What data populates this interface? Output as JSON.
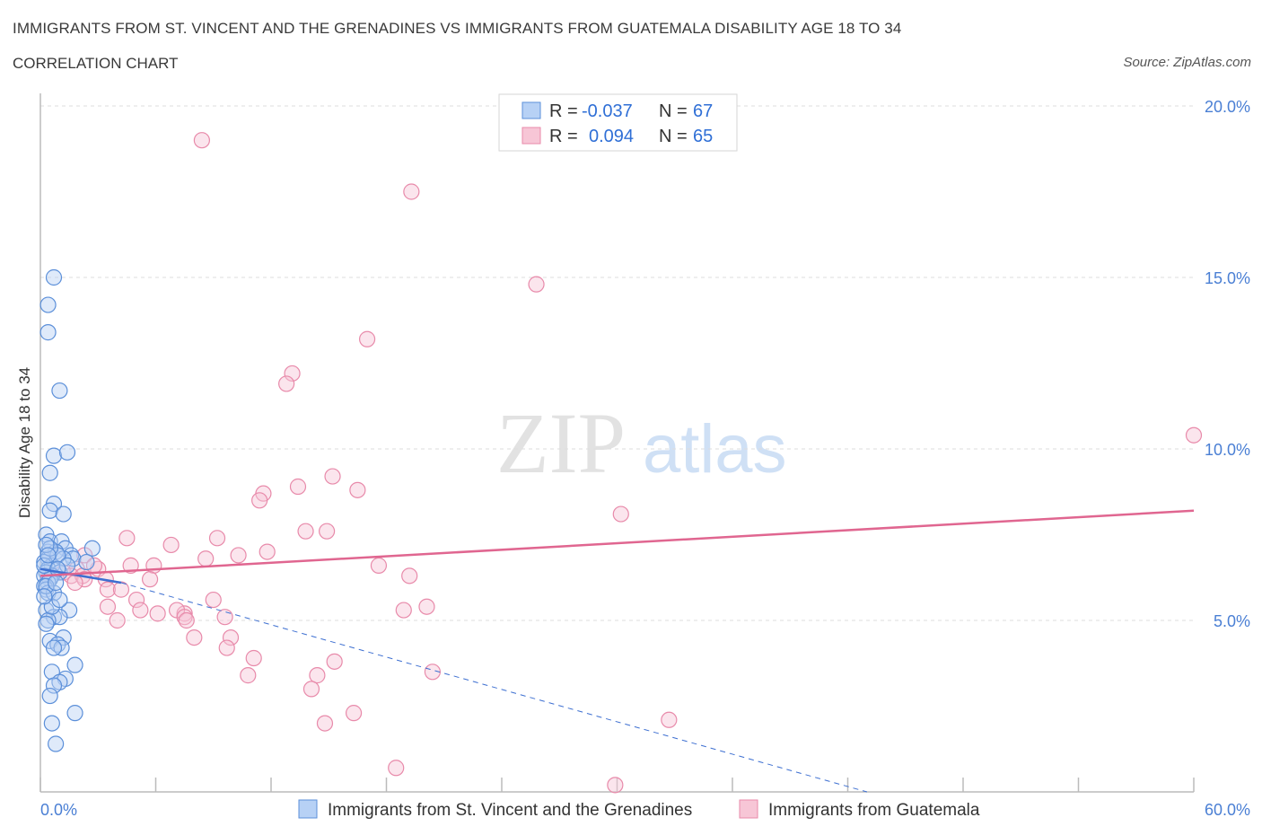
{
  "title": "IMMIGRANTS FROM ST. VINCENT AND THE GRENADINES VS IMMIGRANTS FROM GUATEMALA DISABILITY AGE 18 TO 34",
  "subtitle": "CORRELATION CHART",
  "source": "Source: ZipAtlas.com",
  "watermark": {
    "zip": "ZIP",
    "atlas": "atlas"
  },
  "colors": {
    "blue_fill": "#b7d1f5",
    "blue_stroke": "#5b8fd9",
    "blue_line": "#3d6fd1",
    "pink_fill": "#f7c6d6",
    "pink_stroke": "#e88aaa",
    "pink_line": "#e06690",
    "tick_text": "#4a7fd4",
    "grid": "#dddddd"
  },
  "legend": {
    "series1": {
      "r_label": "R =",
      "r_value": "-0.037",
      "n_label": "N =",
      "n_value": "67"
    },
    "series2": {
      "r_label": "R =",
      "r_value": "0.094",
      "n_label": "N =",
      "n_value": "65"
    }
  },
  "chart_data": {
    "type": "scatter",
    "title": "IMMIGRANTS FROM ST. VINCENT AND THE GRENADINES VS IMMIGRANTS FROM GUATEMALA DISABILITY AGE 18 TO 34",
    "xlabel": "",
    "ylabel": "Disability Age 18 to 34",
    "xlim": [
      0,
      60
    ],
    "ylim": [
      0,
      20
    ],
    "x_tick_labels": [
      "0.0%",
      "60.0%"
    ],
    "y_ticks": [
      5,
      10,
      15,
      20
    ],
    "y_tick_labels": [
      "5.0%",
      "10.0%",
      "15.0%",
      "20.0%"
    ],
    "x_minor_ticks": [
      0,
      6,
      12,
      18,
      24,
      30,
      36,
      42,
      48,
      54,
      60
    ],
    "grid": true,
    "series": [
      {
        "name": "Immigrants from St. Vincent and the Grenadines",
        "color": "blue",
        "points": [
          [
            0.7,
            15.0
          ],
          [
            0.4,
            14.2
          ],
          [
            0.4,
            13.4
          ],
          [
            1.0,
            11.7
          ],
          [
            0.7,
            9.8
          ],
          [
            1.4,
            9.9
          ],
          [
            0.5,
            9.3
          ],
          [
            0.7,
            8.4
          ],
          [
            0.5,
            8.2
          ],
          [
            1.2,
            8.1
          ],
          [
            0.3,
            7.5
          ],
          [
            0.5,
            7.3
          ],
          [
            1.1,
            7.3
          ],
          [
            1.3,
            7.1
          ],
          [
            2.7,
            7.1
          ],
          [
            0.4,
            7.0
          ],
          [
            0.8,
            7.0
          ],
          [
            1.6,
            6.9
          ],
          [
            1.7,
            6.8
          ],
          [
            0.4,
            6.8
          ],
          [
            1.2,
            6.8
          ],
          [
            2.4,
            6.7
          ],
          [
            0.2,
            6.7
          ],
          [
            0.6,
            6.6
          ],
          [
            0.4,
            6.5
          ],
          [
            1.0,
            6.4
          ],
          [
            0.3,
            6.4
          ],
          [
            0.6,
            6.3
          ],
          [
            0.2,
            6.3
          ],
          [
            0.5,
            6.2
          ],
          [
            0.4,
            6.1
          ],
          [
            0.2,
            6.0
          ],
          [
            0.3,
            5.9
          ],
          [
            0.4,
            5.8
          ],
          [
            0.7,
            5.8
          ],
          [
            1.5,
            5.3
          ],
          [
            0.3,
            5.3
          ],
          [
            0.7,
            5.1
          ],
          [
            1.0,
            5.1
          ],
          [
            0.4,
            5.0
          ],
          [
            0.3,
            4.9
          ],
          [
            1.2,
            4.5
          ],
          [
            0.5,
            4.4
          ],
          [
            0.9,
            4.3
          ],
          [
            1.1,
            4.2
          ],
          [
            0.7,
            4.2
          ],
          [
            1.8,
            3.7
          ],
          [
            0.6,
            3.5
          ],
          [
            1.3,
            3.3
          ],
          [
            1.0,
            3.2
          ],
          [
            0.7,
            3.1
          ],
          [
            0.5,
            2.8
          ],
          [
            1.8,
            2.3
          ],
          [
            0.6,
            2.0
          ],
          [
            0.8,
            1.4
          ],
          [
            0.2,
            6.6
          ],
          [
            0.9,
            6.9
          ],
          [
            0.3,
            6.0
          ],
          [
            0.6,
            5.4
          ],
          [
            0.2,
            5.7
          ],
          [
            1.4,
            6.6
          ],
          [
            0.5,
            7.1
          ],
          [
            0.9,
            6.5
          ],
          [
            0.3,
            7.2
          ],
          [
            0.8,
            6.1
          ],
          [
            0.4,
            6.9
          ],
          [
            1.0,
            5.6
          ]
        ]
      },
      {
        "name": "Immigrants from Guatemala",
        "color": "pink",
        "points": [
          [
            8.4,
            19.0
          ],
          [
            19.3,
            17.5
          ],
          [
            25.8,
            14.8
          ],
          [
            17.0,
            13.2
          ],
          [
            13.1,
            12.2
          ],
          [
            12.8,
            11.9
          ],
          [
            60.0,
            10.4
          ],
          [
            15.2,
            9.2
          ],
          [
            13.4,
            8.9
          ],
          [
            11.6,
            8.7
          ],
          [
            16.5,
            8.8
          ],
          [
            11.4,
            8.5
          ],
          [
            30.2,
            8.1
          ],
          [
            13.8,
            7.6
          ],
          [
            14.9,
            7.6
          ],
          [
            4.5,
            7.4
          ],
          [
            9.2,
            7.4
          ],
          [
            6.8,
            7.2
          ],
          [
            11.8,
            7.0
          ],
          [
            2.3,
            6.9
          ],
          [
            8.6,
            6.8
          ],
          [
            10.3,
            6.9
          ],
          [
            17.6,
            6.6
          ],
          [
            4.7,
            6.6
          ],
          [
            5.9,
            6.6
          ],
          [
            1.9,
            6.5
          ],
          [
            3.0,
            6.5
          ],
          [
            19.2,
            6.3
          ],
          [
            1.2,
            6.4
          ],
          [
            1.6,
            6.3
          ],
          [
            2.2,
            6.3
          ],
          [
            2.3,
            6.2
          ],
          [
            3.4,
            6.2
          ],
          [
            5.7,
            6.2
          ],
          [
            1.8,
            6.1
          ],
          [
            3.5,
            5.9
          ],
          [
            9.0,
            5.6
          ],
          [
            5.0,
            5.6
          ],
          [
            20.1,
            5.4
          ],
          [
            3.5,
            5.4
          ],
          [
            18.9,
            5.3
          ],
          [
            5.2,
            5.3
          ],
          [
            7.5,
            5.2
          ],
          [
            7.1,
            5.3
          ],
          [
            6.1,
            5.2
          ],
          [
            7.5,
            5.1
          ],
          [
            9.6,
            5.1
          ],
          [
            4.0,
            5.0
          ],
          [
            7.6,
            5.0
          ],
          [
            8.0,
            4.5
          ],
          [
            9.9,
            4.5
          ],
          [
            9.7,
            4.2
          ],
          [
            11.1,
            3.9
          ],
          [
            10.8,
            3.4
          ],
          [
            15.3,
            3.8
          ],
          [
            14.4,
            3.4
          ],
          [
            20.4,
            3.5
          ],
          [
            14.1,
            3.0
          ],
          [
            16.3,
            2.3
          ],
          [
            14.8,
            2.0
          ],
          [
            32.7,
            2.1
          ],
          [
            18.5,
            0.7
          ],
          [
            29.9,
            0.2
          ],
          [
            2.8,
            6.6
          ],
          [
            4.2,
            5.9
          ]
        ]
      }
    ],
    "trendlines": [
      {
        "series": "Immigrants from St. Vincent and the Grenadines",
        "solid": [
          [
            0,
            6.5
          ],
          [
            4.2,
            6.1
          ]
        ],
        "dashed": [
          [
            4.2,
            6.1
          ],
          [
            43,
            0
          ]
        ]
      },
      {
        "series": "Immigrants from Guatemala",
        "solid": [
          [
            0,
            6.3
          ],
          [
            60,
            8.2
          ]
        ]
      }
    ]
  },
  "bottom_legend": {
    "series1": "Immigrants from St. Vincent and the Grenadines",
    "series2": "Immigrants from Guatemala"
  }
}
